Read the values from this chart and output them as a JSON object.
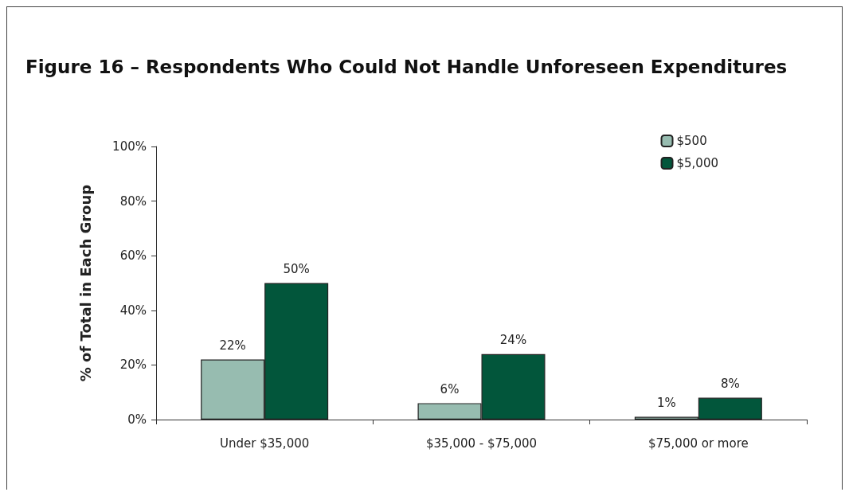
{
  "chart_data": {
    "type": "bar",
    "title": "Figure 16 – Respondents Who Could Not Handle Unforeseen Expenditures",
    "ylabel": "% of Total in Each Group",
    "categories": [
      "Under $35,000",
      "$35,000 - $75,000",
      "$75,000 or more"
    ],
    "series": [
      {
        "name": "$500",
        "color": "#97bcb0",
        "values": [
          22,
          6,
          1
        ],
        "value_labels": [
          "22%",
          "6%",
          "1%"
        ]
      },
      {
        "name": "$5,000",
        "color": "#02563b",
        "values": [
          50,
          24,
          8
        ],
        "value_labels": [
          "50%",
          "24%",
          "8%"
        ]
      }
    ],
    "ylim": [
      0,
      100
    ],
    "yticks": [
      {
        "value": 0,
        "label": "0%"
      },
      {
        "value": 20,
        "label": "20%"
      },
      {
        "value": 40,
        "label": "40%"
      },
      {
        "value": 60,
        "label": "60%"
      },
      {
        "value": 80,
        "label": "80%"
      },
      {
        "value": 100,
        "label": "100%"
      }
    ],
    "grid": false,
    "legend": "top right"
  }
}
